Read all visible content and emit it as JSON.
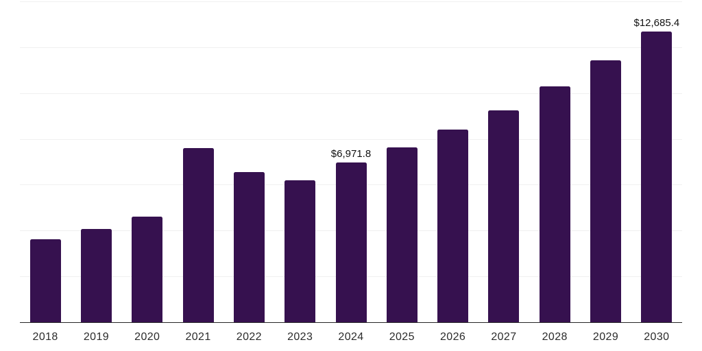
{
  "chart_data": {
    "type": "bar",
    "categories": [
      "2018",
      "2019",
      "2020",
      "2021",
      "2022",
      "2023",
      "2024",
      "2025",
      "2026",
      "2027",
      "2028",
      "2029",
      "2030"
    ],
    "values": [
      3610,
      4075,
      4610,
      7610,
      6545,
      6190,
      6971.8,
      7640,
      8400,
      9255,
      10280,
      11415,
      12685.4
    ],
    "data_labels": [
      {
        "category": "2024",
        "text": "$6,971.8"
      },
      {
        "category": "2030",
        "text": "$12,685.4"
      }
    ],
    "title": "",
    "xlabel": "",
    "ylabel": "",
    "ylim": [
      0,
      14000
    ],
    "grid": {
      "horizontal": true,
      "step": 2000,
      "color": "#f0f0f0"
    },
    "legend": "none",
    "bar_color": "#36114F",
    "axis_color": "#262626",
    "x_tick_color": "#2b2b2b",
    "data_label_color": "#111111"
  }
}
